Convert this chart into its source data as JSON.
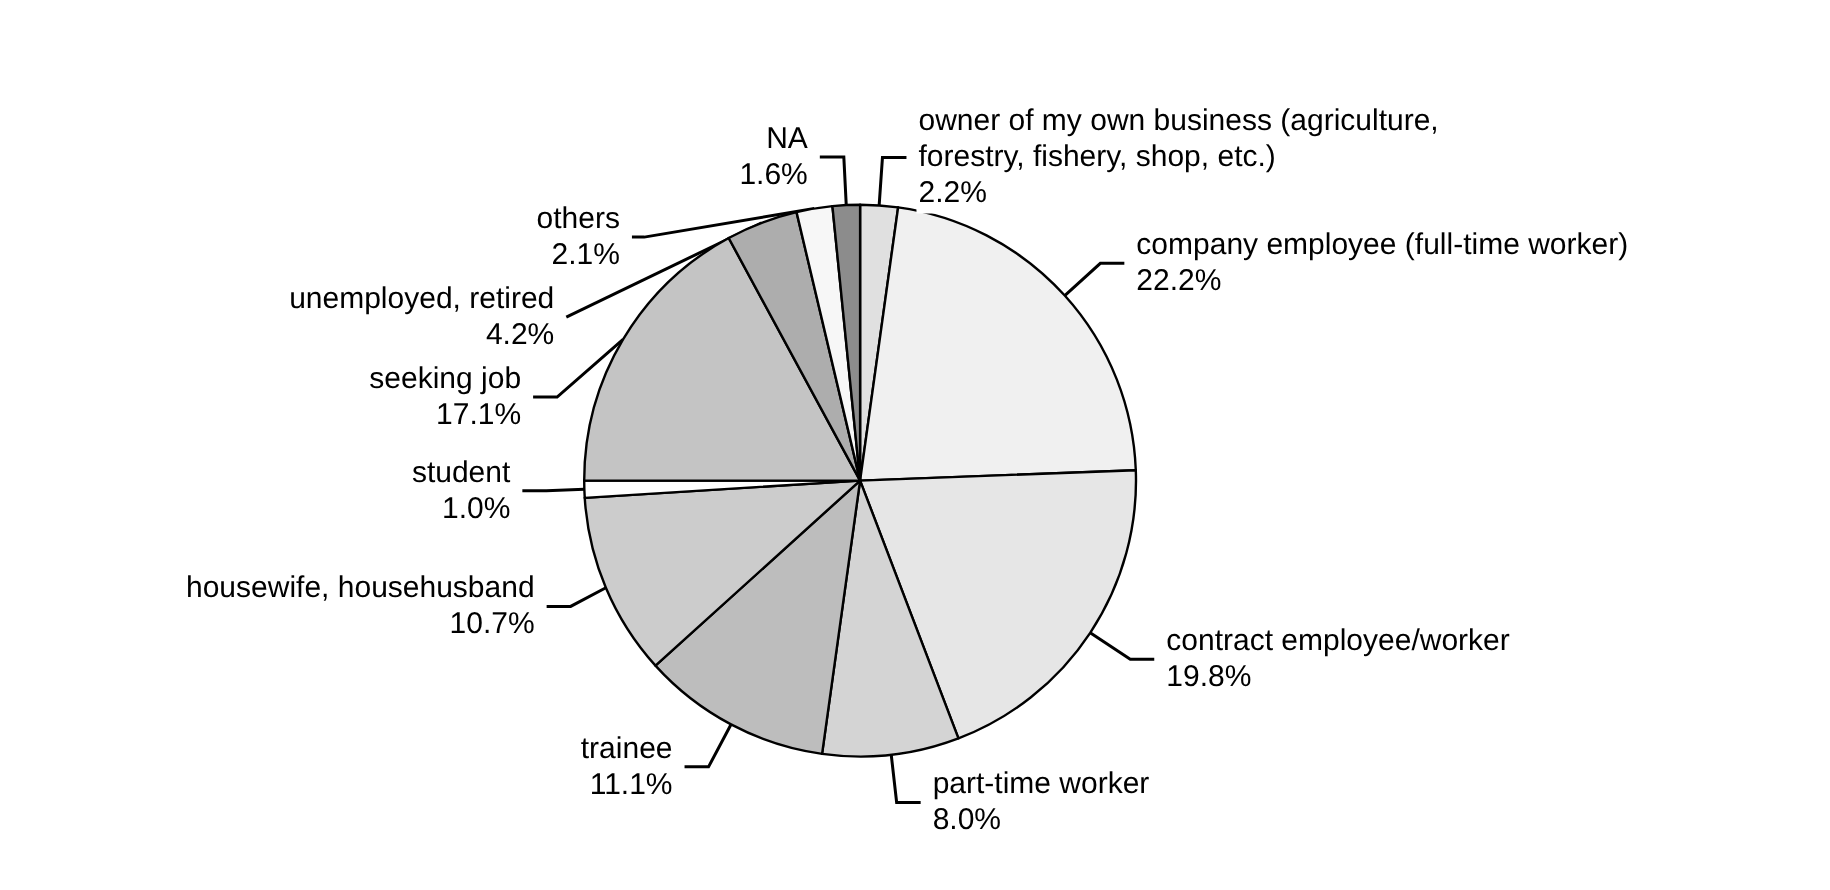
{
  "chart_data": {
    "type": "pie",
    "categories": [
      "owner of my own business (agriculture, forestry, fishery, shop, etc.)",
      "company employee (full-time worker)",
      "contract employee/worker",
      "part-time worker",
      "trainee",
      "housewife, househusband",
      "student",
      "seeking job",
      "unemployed, retired",
      "others",
      "NA"
    ],
    "values": [
      2.2,
      22.2,
      19.8,
      8.0,
      11.1,
      10.7,
      1.0,
      17.1,
      4.2,
      2.1,
      1.6
    ],
    "value_labels": [
      "2.2%",
      "22.2%",
      "19.8%",
      "8.0%",
      "11.1%",
      "10.7%",
      "1.0%",
      "17.1%",
      "4.2%",
      "2.1%",
      "1.6%"
    ],
    "colors": [
      "#e0e0e0",
      "#f0f0f0",
      "#e6e6e6",
      "#d4d4d4",
      "#bdbdbd",
      "#cccccc",
      "#ffffff",
      "#c4c4c4",
      "#adadad",
      "#f7f7f7",
      "#8c8c8c"
    ],
    "legend": false
  }
}
